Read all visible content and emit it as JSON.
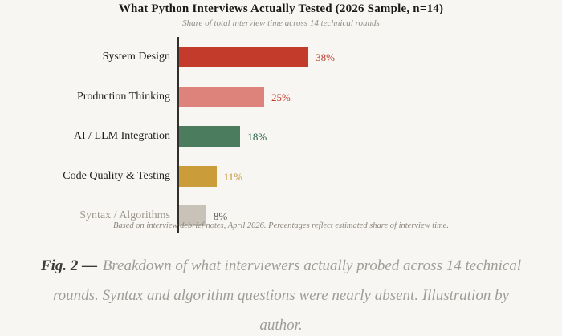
{
  "title": "What Python Interviews Actually Tested (2026 Sample, n=14)",
  "subtitle": "Share of total interview time across 14 technical rounds",
  "footnote": "Based on interview debrief notes, April 2026. Percentages reflect estimated share of interview time.",
  "chart_data": {
    "type": "bar",
    "orientation": "horizontal",
    "title": "What Python Interviews Actually Tested (2026 Sample, n=14)",
    "subtitle": "Share of total interview time across 14 technical rounds",
    "categories": [
      "System Design",
      "Production Thinking",
      "AI / LLM Integration",
      "Code Quality & Testing",
      "Syntax / Algorithms"
    ],
    "values": [
      38,
      25,
      18,
      11,
      8
    ],
    "value_labels": [
      "38%",
      "25%",
      "18%",
      "11%",
      "8%"
    ],
    "bar_colors": [
      "#c23b2b",
      "#de837b",
      "#4a7c5d",
      "#cb9d3a",
      "#c9c2b8"
    ],
    "value_label_colors": [
      "#b6392a",
      "#c23b2b",
      "#215f3f",
      "#c3932f",
      "#57534c"
    ],
    "category_label_colors": [
      "#21201d",
      "#21201d",
      "#21201d",
      "#21201d",
      "#9c968c"
    ],
    "xlim": [
      0,
      45
    ],
    "grid": false,
    "legend": "none",
    "unit": "%"
  },
  "caption": {
    "prefix": "Fig. 2 —",
    "line1": "Breakdown of what interviewers actually probed across 14 technical",
    "line2": "rounds. Syntax and algorithm questions were nearly absent. Illustration by",
    "line3": "author."
  },
  "theme": {
    "background": "#f8f6f3",
    "axis_color": "#33302b",
    "title_color": "#191917",
    "subtitle_color": "#908c85",
    "footnote_color": "#8b867e",
    "caption_color": "#9f9d98",
    "caption_prefix_color": "#3c3b37"
  }
}
